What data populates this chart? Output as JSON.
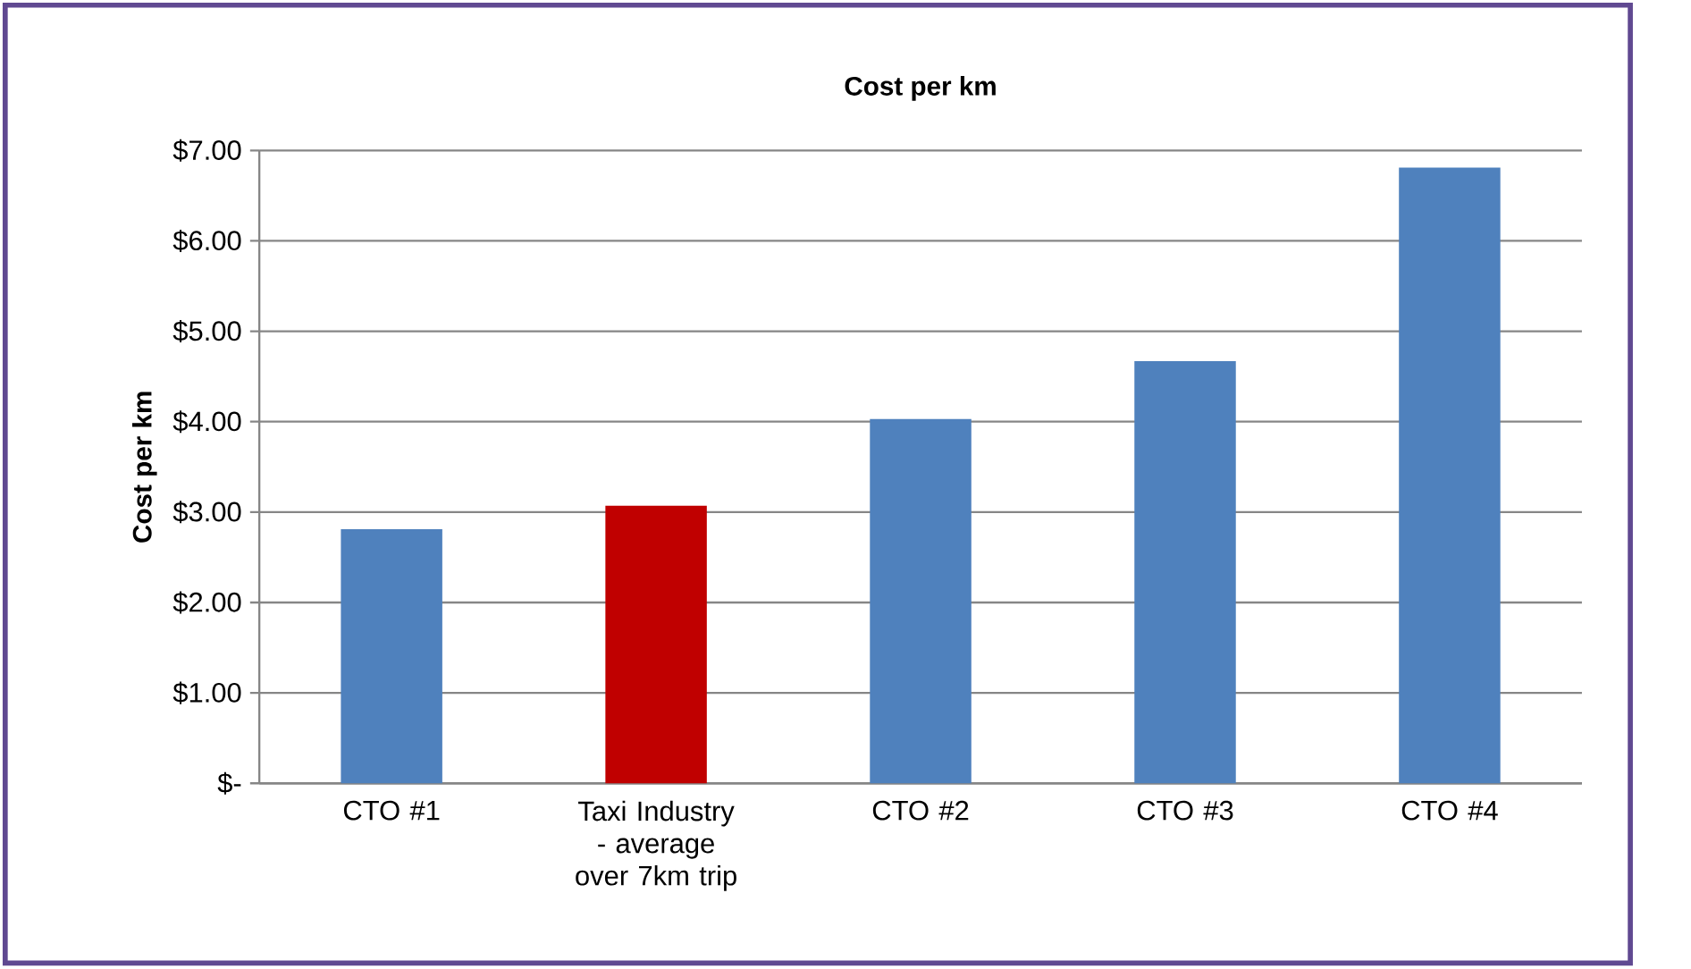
{
  "chart_data": {
    "type": "bar",
    "title": "Cost per km",
    "ylabel": "Cost per km",
    "categories": [
      "CTO #1",
      "Taxi Industry - average  over 7km trip",
      "CTO #2",
      "CTO #3",
      "CTO #4"
    ],
    "values": [
      2.81,
      3.07,
      4.03,
      4.67,
      6.81
    ],
    "colors": [
      "#4f81bd",
      "#c00000",
      "#4f81bd",
      "#4f81bd",
      "#4f81bd"
    ],
    "ylim": [
      0,
      7
    ],
    "yticks": [
      {
        "value": 0,
        "label": "$-"
      },
      {
        "value": 1,
        "label": "$1.00"
      },
      {
        "value": 2,
        "label": "$2.00"
      },
      {
        "value": 3,
        "label": "$3.00"
      },
      {
        "value": 4,
        "label": "$4.00"
      },
      {
        "value": 5,
        "label": "$5.00"
      },
      {
        "value": 6,
        "label": "$6.00"
      },
      {
        "value": 7,
        "label": "$7.00"
      }
    ],
    "grid": "y"
  }
}
